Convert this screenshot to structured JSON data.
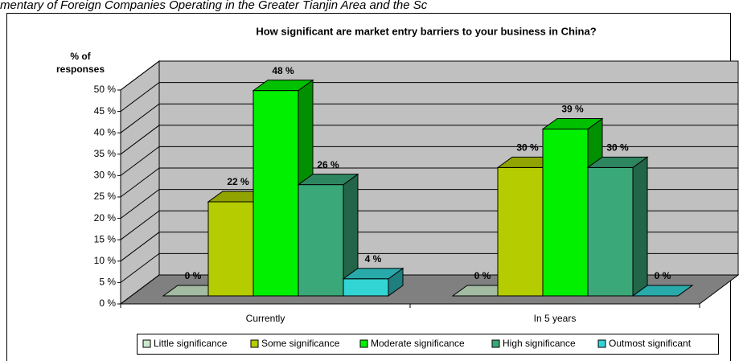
{
  "caption": "mentary of Foreign Companies Operating in the Greater Tianjin Area and the Sc",
  "chart_data": {
    "type": "bar3d",
    "title": "How significant are market entry barriers to your business in China?",
    "y_label_lines": [
      "% of",
      "responses"
    ],
    "categories": [
      "Currently",
      "In 5 years"
    ],
    "series": [
      {
        "name": "Little significance",
        "color": "#cce8cc",
        "values": [
          0,
          0
        ],
        "value_labels": [
          "0 %",
          "0 %"
        ]
      },
      {
        "name": "Some significance",
        "color": "#b5cc00",
        "values": [
          22,
          30
        ],
        "value_labels": [
          "22 %",
          "30 %"
        ]
      },
      {
        "name": "Moderate significance",
        "color": "#00f000",
        "values": [
          48,
          39
        ],
        "value_labels": [
          "48 %",
          "39 %"
        ]
      },
      {
        "name": "High significance",
        "color": "#3aa878",
        "values": [
          26,
          30
        ],
        "value_labels": [
          "26 %",
          "30 %"
        ]
      },
      {
        "name": "Outmost significant",
        "color": "#33d4d4",
        "values": [
          4,
          0
        ],
        "value_labels": [
          "4 %",
          "0 %"
        ]
      }
    ],
    "ylim": [
      0,
      50
    ],
    "yticks": [
      {
        "value": 0,
        "label": "0 %"
      },
      {
        "value": 5,
        "label": "5 %"
      },
      {
        "value": 10,
        "label": "10 %"
      },
      {
        "value": 15,
        "label": "15 %"
      },
      {
        "value": 20,
        "label": "20 %"
      },
      {
        "value": 25,
        "label": "25 %"
      },
      {
        "value": 30,
        "label": "30 %"
      },
      {
        "value": 35,
        "label": "35 %"
      },
      {
        "value": 40,
        "label": "40 %"
      },
      {
        "value": 45,
        "label": "45 %"
      },
      {
        "value": 50,
        "label": "50 %"
      }
    ],
    "grid": true,
    "legend": "bottom"
  }
}
